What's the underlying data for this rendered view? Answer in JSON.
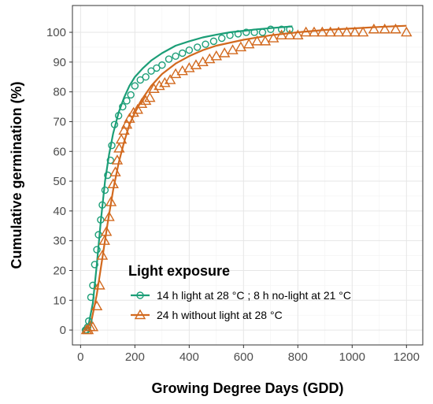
{
  "chart_data": {
    "type": "scatter",
    "xlabel": "Growing Degree Days (GDD)",
    "ylabel": "Cumulative germination (%)",
    "xlim": [
      -30,
      1260
    ],
    "ylim": [
      -5,
      109
    ],
    "xticks": [
      0,
      200,
      400,
      600,
      800,
      1000,
      1200
    ],
    "yticks": [
      0,
      10,
      20,
      30,
      40,
      50,
      60,
      70,
      80,
      90,
      100
    ],
    "grid": true,
    "legend": {
      "title": "Light exposure",
      "placement": "bottom-right inside plot"
    },
    "series": [
      {
        "name": "14 h light at 28 °C ; 8 h no-light at  21 °C",
        "color": "#1b9e77",
        "marker": "circle",
        "points": [
          [
            18,
            0
          ],
          [
            22,
            0
          ],
          [
            26,
            1
          ],
          [
            30,
            3
          ],
          [
            38,
            11
          ],
          [
            45,
            15
          ],
          [
            52,
            22
          ],
          [
            60,
            27
          ],
          [
            66,
            32
          ],
          [
            74,
            37
          ],
          [
            80,
            42
          ],
          [
            90,
            47
          ],
          [
            100,
            52
          ],
          [
            110,
            57
          ],
          [
            115,
            62
          ],
          [
            125,
            69
          ],
          [
            140,
            72
          ],
          [
            155,
            75
          ],
          [
            170,
            77
          ],
          [
            185,
            79
          ],
          [
            200,
            82
          ],
          [
            220,
            84
          ],
          [
            240,
            85
          ],
          [
            260,
            87
          ],
          [
            280,
            88
          ],
          [
            300,
            89
          ],
          [
            325,
            91
          ],
          [
            350,
            92
          ],
          [
            375,
            93
          ],
          [
            400,
            94
          ],
          [
            430,
            95
          ],
          [
            460,
            96
          ],
          [
            490,
            97
          ],
          [
            520,
            98
          ],
          [
            550,
            99
          ],
          [
            580,
            99.5
          ],
          [
            610,
            100
          ],
          [
            640,
            100
          ],
          [
            670,
            100
          ],
          [
            700,
            101
          ],
          [
            740,
            101
          ],
          [
            770,
            101
          ]
        ],
        "fit": [
          [
            15,
            0
          ],
          [
            30,
            2
          ],
          [
            45,
            9
          ],
          [
            60,
            22
          ],
          [
            75,
            37
          ],
          [
            90,
            50
          ],
          [
            105,
            59
          ],
          [
            120,
            66
          ],
          [
            140,
            73
          ],
          [
            160,
            78
          ],
          [
            180,
            82
          ],
          [
            200,
            85
          ],
          [
            230,
            88
          ],
          [
            260,
            90.5
          ],
          [
            300,
            93
          ],
          [
            350,
            95.5
          ],
          [
            400,
            97
          ],
          [
            450,
            98.3
          ],
          [
            500,
            99.2
          ],
          [
            550,
            100
          ],
          [
            600,
            100.5
          ],
          [
            650,
            101
          ],
          [
            700,
            101.4
          ],
          [
            780,
            102
          ]
        ]
      },
      {
        "name": "24 h without light at 28 °C",
        "color": "#d2691e",
        "marker": "triangle",
        "points": [
          [
            22,
            0
          ],
          [
            28,
            0
          ],
          [
            35,
            1
          ],
          [
            45,
            1
          ],
          [
            60,
            8
          ],
          [
            70,
            15
          ],
          [
            80,
            25
          ],
          [
            88,
            30
          ],
          [
            95,
            33
          ],
          [
            105,
            38
          ],
          [
            112,
            43
          ],
          [
            120,
            49
          ],
          [
            128,
            53
          ],
          [
            135,
            57
          ],
          [
            142,
            61
          ],
          [
            150,
            64
          ],
          [
            160,
            67
          ],
          [
            170,
            69
          ],
          [
            180,
            71
          ],
          [
            195,
            73
          ],
          [
            210,
            74
          ],
          [
            225,
            76
          ],
          [
            240,
            77
          ],
          [
            255,
            78
          ],
          [
            270,
            81
          ],
          [
            290,
            82
          ],
          [
            310,
            83
          ],
          [
            330,
            84
          ],
          [
            350,
            86
          ],
          [
            375,
            87
          ],
          [
            400,
            88
          ],
          [
            425,
            89
          ],
          [
            450,
            90
          ],
          [
            475,
            91
          ],
          [
            500,
            92
          ],
          [
            530,
            93
          ],
          [
            560,
            94
          ],
          [
            590,
            95
          ],
          [
            620,
            96
          ],
          [
            650,
            97
          ],
          [
            680,
            97
          ],
          [
            710,
            98
          ],
          [
            740,
            99
          ],
          [
            770,
            99
          ],
          [
            800,
            99
          ],
          [
            830,
            100
          ],
          [
            860,
            100
          ],
          [
            890,
            100
          ],
          [
            920,
            100
          ],
          [
            950,
            100
          ],
          [
            980,
            100
          ],
          [
            1010,
            100
          ],
          [
            1040,
            100
          ],
          [
            1080,
            101
          ],
          [
            1120,
            101
          ],
          [
            1160,
            101
          ],
          [
            1200,
            100
          ]
        ],
        "fit": [
          [
            20,
            0
          ],
          [
            40,
            3
          ],
          [
            60,
            12
          ],
          [
            80,
            24
          ],
          [
            100,
            36
          ],
          [
            120,
            47
          ],
          [
            140,
            56
          ],
          [
            160,
            63
          ],
          [
            180,
            69
          ],
          [
            200,
            73
          ],
          [
            230,
            78
          ],
          [
            260,
            82
          ],
          [
            300,
            86
          ],
          [
            350,
            89.5
          ],
          [
            400,
            92
          ],
          [
            450,
            94
          ],
          [
            500,
            95.5
          ],
          [
            600,
            97.5
          ],
          [
            700,
            99
          ],
          [
            800,
            100
          ],
          [
            900,
            100.8
          ],
          [
            1000,
            101.3
          ],
          [
            1100,
            101.8
          ],
          [
            1200,
            102.2
          ]
        ]
      }
    ]
  }
}
